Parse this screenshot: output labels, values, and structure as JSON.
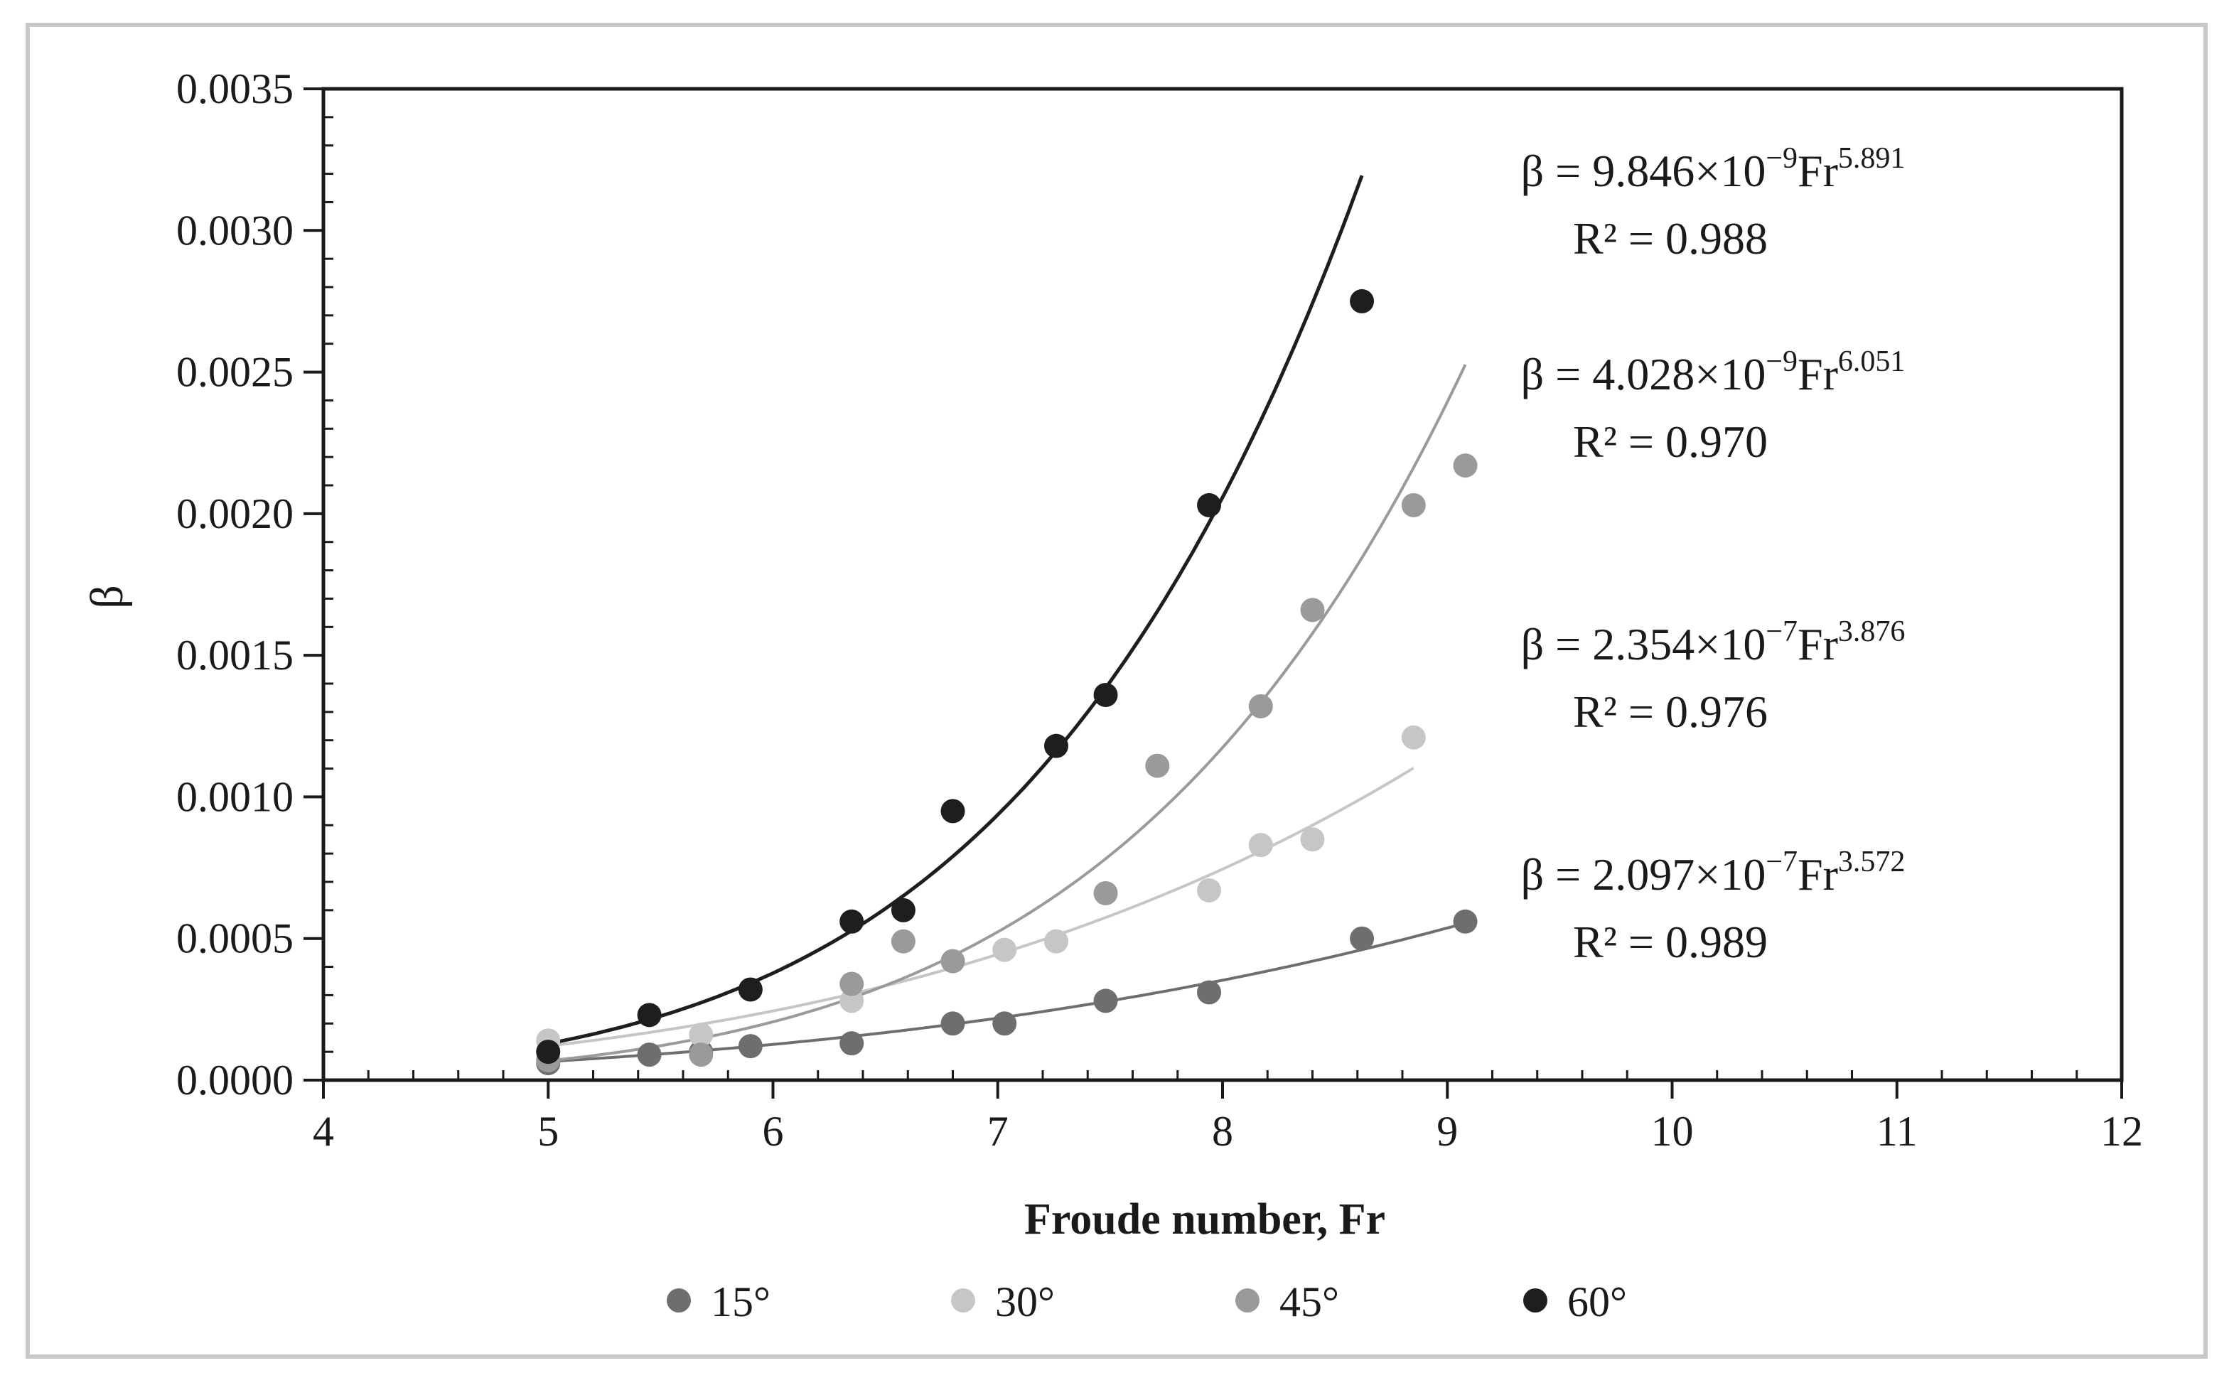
{
  "chart_data": {
    "type": "scatter",
    "xlabel": "Froude number, Fr",
    "ylabel": "β",
    "xlim": [
      4,
      12
    ],
    "ylim": [
      0,
      0.0035
    ],
    "x_ticks": [
      "4",
      "5",
      "6",
      "7",
      "8",
      "9",
      "10",
      "11",
      "12"
    ],
    "y_ticks": [
      "0.0000",
      "0.0005",
      "0.0010",
      "0.0015",
      "0.0020",
      "0.0025",
      "0.0030",
      "0.0035"
    ],
    "grid": false,
    "legend_position": "bottom",
    "series": [
      {
        "name": "15°",
        "color": "#6e6e6e",
        "x": [
          5.0,
          5.45,
          5.68,
          5.9,
          6.35,
          6.8,
          7.03,
          7.48,
          7.94,
          8.62,
          9.08
        ],
        "y": [
          6e-05,
          9e-05,
          0.0001,
          0.00012,
          0.00013,
          0.0002,
          0.0002,
          0.00028,
          0.00031,
          0.0005,
          0.00056
        ],
        "trend": {
          "a": 2.097e-07,
          "b": 3.572,
          "x_range": [
            5.0,
            9.08
          ]
        },
        "equation": {
          "prefix": "β = 2.097×10",
          "exp": "−7",
          "mid": "Fr",
          "pow": "3.572",
          "r2": "R² = 0.989"
        }
      },
      {
        "name": "30°",
        "color": "#c6c6c6",
        "x": [
          5.0,
          5.68,
          6.35,
          6.8,
          7.03,
          7.26,
          7.94,
          8.17,
          8.4,
          8.85
        ],
        "y": [
          0.00014,
          0.00016,
          0.00028,
          0.00042,
          0.00046,
          0.00049,
          0.00067,
          0.00083,
          0.00085,
          0.00121
        ],
        "trend": {
          "a": 2.354e-07,
          "b": 3.876,
          "x_range": [
            5.0,
            8.85
          ]
        },
        "equation": {
          "prefix": "β = 2.354×10",
          "exp": "−7",
          "mid": "Fr",
          "pow": "3.876",
          "r2": "R² = 0.976"
        }
      },
      {
        "name": "45°",
        "color": "#9a9a9a",
        "x": [
          5.0,
          5.68,
          6.35,
          6.58,
          6.8,
          7.48,
          7.71,
          8.17,
          8.4,
          8.85,
          9.08
        ],
        "y": [
          7e-05,
          9e-05,
          0.00034,
          0.00049,
          0.00042,
          0.00066,
          0.00111,
          0.00132,
          0.00166,
          0.00203,
          0.00217
        ],
        "trend": {
          "a": 4.028e-09,
          "b": 6.051,
          "x_range": [
            5.0,
            9.08
          ]
        },
        "equation": {
          "prefix": "β = 4.028×10",
          "exp": "−9",
          "mid": "Fr",
          "pow": "6.051",
          "r2": "R² = 0.970"
        }
      },
      {
        "name": "60°",
        "color": "#1e1e1e",
        "x": [
          5.0,
          5.45,
          5.9,
          6.35,
          6.58,
          6.8,
          7.26,
          7.48,
          7.94,
          8.62
        ],
        "y": [
          0.0001,
          0.00023,
          0.00032,
          0.00056,
          0.0006,
          0.00095,
          0.00118,
          0.00136,
          0.00203,
          0.00275
        ],
        "trend": {
          "a": 9.846e-09,
          "b": 5.891,
          "x_range": [
            5.0,
            8.62
          ]
        },
        "equation": {
          "prefix": "β = 9.846×10",
          "exp": "−9",
          "mid": "Fr",
          "pow": "5.891",
          "r2": "R² = 0.988"
        }
      }
    ]
  }
}
